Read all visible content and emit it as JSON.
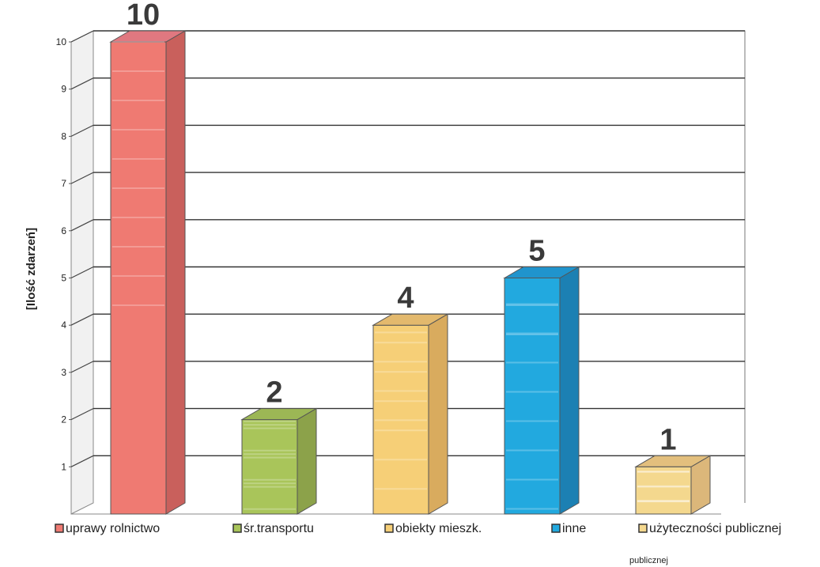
{
  "chart_data": {
    "type": "bar",
    "style": "3d",
    "ylabel": "[Ilość zdarzeń]",
    "ylim": [
      0,
      10
    ],
    "yticks": [
      "1",
      "2",
      "3",
      "4",
      "5",
      "6",
      "7",
      "8",
      "9",
      "10"
    ],
    "grid": true,
    "legend_position": "bottom",
    "categories": [
      "uprawy rolnictwo",
      "śr.transportu",
      "obiekty mieszk.",
      "inne",
      "użyteczności publicznej"
    ],
    "values": [
      10,
      2,
      4,
      5,
      1
    ],
    "data_labels": [
      "10",
      "2",
      "4",
      "5",
      "1"
    ],
    "colors": [
      "#ef7a72",
      "#a9c55a",
      "#f6cf77",
      "#22a9df",
      "#f4d88e"
    ],
    "side_colors": [
      "#c9605c",
      "#8ca24a",
      "#d9ab5e",
      "#1c80b3",
      "#dcb77a"
    ],
    "top_colors": [
      "#e07880",
      "#9cb755",
      "#e3b96d",
      "#2094cd",
      "#e3bf7d"
    ],
    "footnote": "publicznej"
  }
}
